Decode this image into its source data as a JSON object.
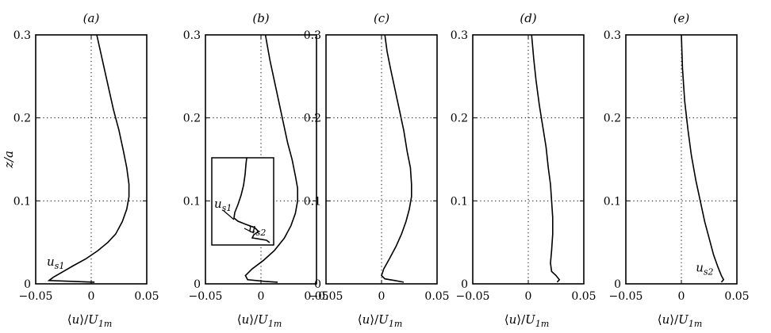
{
  "chart_data": [
    {
      "type": "line",
      "title": "(a)",
      "xlabel": "⟨u⟩/U1m",
      "ylabel": "z/a",
      "xlim": [
        -0.05,
        0.05
      ],
      "ylim": [
        0,
        0.3
      ],
      "xticks": [
        -0.05,
        0,
        0.05
      ],
      "xtick_labels": [
        "−0.05",
        "0",
        "0.05"
      ],
      "yticks": [
        0,
        0.1,
        0.2,
        0.3
      ],
      "ytick_labels": [
        "0",
        "0.1",
        "0.2",
        "0.3"
      ],
      "grid": true,
      "series": [
        {
          "x": [
            0.003,
            -0.038,
            -0.034,
            -0.025,
            -0.016,
            -0.005,
            0.006,
            0.015,
            0.022,
            0.028,
            0.032,
            0.034,
            0.034,
            0.032,
            0.029,
            0.025,
            0.02,
            0.015,
            0.01,
            0.005
          ],
          "y": [
            0.002,
            0.004,
            0.008,
            0.015,
            0.022,
            0.03,
            0.04,
            0.05,
            0.06,
            0.075,
            0.09,
            0.105,
            0.12,
            0.14,
            0.16,
            0.185,
            0.21,
            0.24,
            0.27,
            0.3
          ]
        }
      ],
      "annotations": [
        {
          "text": "u",
          "sub": "s1",
          "x": -0.04,
          "y": 0.022
        }
      ]
    },
    {
      "type": "line",
      "title": "(b)",
      "xlabel": "⟨u⟩/U1m",
      "xlim": [
        -0.05,
        0.05
      ],
      "ylim": [
        0,
        0.3
      ],
      "xticks": [
        -0.05,
        0,
        0.05
      ],
      "xtick_labels": [
        "−0.05",
        "0",
        "0.05"
      ],
      "yticks": [
        0,
        0.1,
        0.2,
        0.3
      ],
      "ytick_labels": [
        "0",
        "0.1",
        "0.2",
        "0.3"
      ],
      "grid": true,
      "series": [
        {
          "x": [
            0.015,
            0.004,
            -0.012,
            -0.014,
            -0.008,
            0.002,
            0.012,
            0.021,
            0.027,
            0.031,
            0.033,
            0.033,
            0.031,
            0.028,
            0.024,
            0.02,
            0.016,
            0.012,
            0.008,
            0.004
          ],
          "y": [
            0.002,
            0.003,
            0.005,
            0.01,
            0.018,
            0.028,
            0.04,
            0.055,
            0.07,
            0.085,
            0.1,
            0.115,
            0.13,
            0.15,
            0.17,
            0.195,
            0.22,
            0.245,
            0.27,
            0.3
          ]
        }
      ],
      "inset_labels": [
        {
          "text": "u",
          "sub": "s1"
        },
        {
          "text": "u",
          "sub": "s2"
        }
      ]
    },
    {
      "type": "line",
      "title": "(c)",
      "xlabel": "⟨u⟩/U1m",
      "xlim": [
        -0.05,
        0.05
      ],
      "ylim": [
        0,
        0.3
      ],
      "xticks": [
        -0.05,
        0,
        0.05
      ],
      "xtick_labels": [
        "−0.05",
        "0",
        "0.05"
      ],
      "yticks": [
        0,
        0.1,
        0.2,
        0.3
      ],
      "ytick_labels": [
        "0",
        "0.1",
        "0.2",
        "0.3"
      ],
      "grid": true,
      "series": [
        {
          "x": [
            0.02,
            0.012,
            0.003,
            0.0,
            0.002,
            0.007,
            0.013,
            0.018,
            0.022,
            0.025,
            0.027,
            0.027,
            0.026,
            0.023,
            0.02,
            0.016,
            0.012,
            0.008,
            0.005,
            0.003
          ],
          "y": [
            0.002,
            0.004,
            0.006,
            0.01,
            0.018,
            0.03,
            0.045,
            0.06,
            0.075,
            0.09,
            0.105,
            0.12,
            0.14,
            0.16,
            0.185,
            0.21,
            0.235,
            0.26,
            0.28,
            0.3
          ]
        }
      ]
    },
    {
      "type": "line",
      "title": "(d)",
      "xlabel": "⟨u⟩/U1m",
      "xlim": [
        -0.05,
        0.05
      ],
      "ylim": [
        0,
        0.3
      ],
      "xticks": [
        -0.05,
        0,
        0.05
      ],
      "xtick_labels": [
        "−0.05",
        "0",
        "0.05"
      ],
      "yticks": [
        0,
        0.1,
        0.2,
        0.3
      ],
      "ytick_labels": [
        "0",
        "0.1",
        "0.2",
        "0.3"
      ],
      "grid": true,
      "series": [
        {
          "x": [
            0.026,
            0.028,
            0.025,
            0.021,
            0.02,
            0.021,
            0.022,
            0.022,
            0.021,
            0.02,
            0.018,
            0.016,
            0.013,
            0.01,
            0.007,
            0.005,
            0.003
          ],
          "y": [
            0.002,
            0.005,
            0.01,
            0.015,
            0.025,
            0.04,
            0.06,
            0.08,
            0.1,
            0.12,
            0.14,
            0.165,
            0.19,
            0.215,
            0.245,
            0.27,
            0.3
          ]
        }
      ]
    },
    {
      "type": "line",
      "title": "(e)",
      "xlabel": "⟨u⟩/U1m",
      "xlim": [
        -0.05,
        0.05
      ],
      "ylim": [
        0,
        0.3
      ],
      "xticks": [
        -0.05,
        0,
        0.05
      ],
      "xtick_labels": [
        "−0.05",
        "0",
        "0.05"
      ],
      "yticks": [
        0,
        0.1,
        0.2,
        0.3
      ],
      "ytick_labels": [
        "0",
        "0.1",
        "0.2",
        "0.3"
      ],
      "grid": true,
      "series": [
        {
          "x": [
            0.036,
            0.038,
            0.036,
            0.033,
            0.029,
            0.025,
            0.021,
            0.017,
            0.013,
            0.009,
            0.006,
            0.003,
            0.001,
            0.0
          ],
          "y": [
            0.002,
            0.005,
            0.01,
            0.02,
            0.035,
            0.055,
            0.075,
            0.1,
            0.125,
            0.155,
            0.185,
            0.22,
            0.26,
            0.3
          ]
        }
      ],
      "annotations": [
        {
          "text": "u",
          "sub": "s2",
          "x": 0.013,
          "y": 0.015
        }
      ]
    }
  ]
}
